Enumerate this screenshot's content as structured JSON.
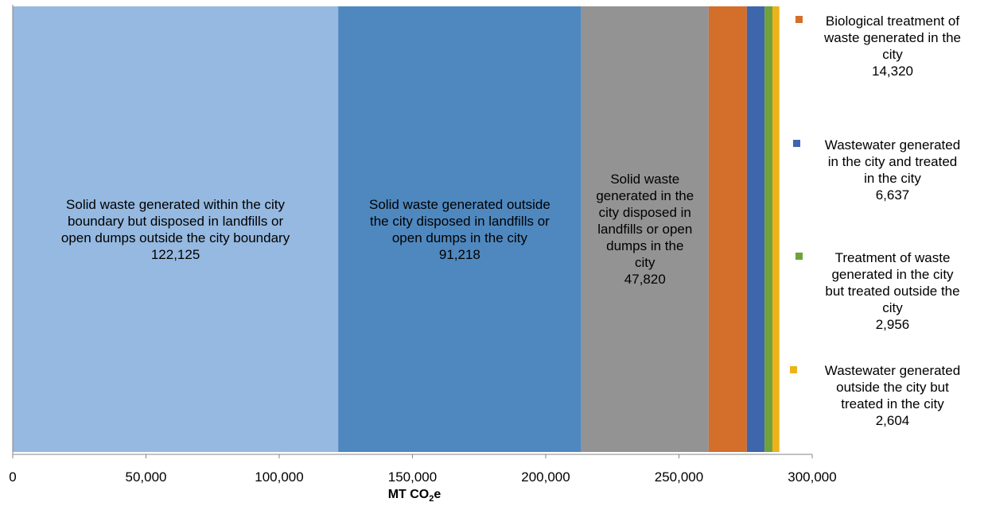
{
  "chart_data": {
    "type": "bar",
    "orientation": "horizontal-stacked",
    "series": [
      {
        "name": "Solid waste generated within the city boundary but disposed in landfills or open dumps outside the city boundary",
        "value": 122125,
        "value_label": "122,125",
        "color": "#95b9e0"
      },
      {
        "name": "Solid waste generated outside the city disposed in landfills or open dumps in the city",
        "value": 91218,
        "value_label": "91,218",
        "color": "#4f88bf"
      },
      {
        "name": "Solid waste generated in the city disposed in landfills or open dumps in the city",
        "value": 47820,
        "value_label": "47,820",
        "color": "#939393"
      },
      {
        "name": "Biological treatment of waste generated in the city",
        "value": 14320,
        "value_label": "14,320",
        "color": "#d36f2b"
      },
      {
        "name": "Wastewater generated in the city and treated in the city",
        "value": 6637,
        "value_label": "6,637",
        "color": "#3e66ad"
      },
      {
        "name": "Treatment of waste generated in the city but treated outside the city",
        "value": 2956,
        "value_label": "2,956",
        "color": "#6fa23d"
      },
      {
        "name": "Wastewater generated outside the city but treated in the city",
        "value": 2604,
        "value_label": "2,604",
        "color": "#ecb31a"
      }
    ],
    "xlabel_main": "MT CO",
    "xlabel_sub": "2",
    "xlabel_suffix": "e",
    "xlim": [
      0,
      300000
    ],
    "xticks": [
      0,
      50000,
      100000,
      150000,
      200000,
      250000,
      300000
    ],
    "xtick_labels": [
      "0",
      "50,000",
      "100,000",
      "150,000",
      "200,000",
      "250,000",
      "300,000"
    ],
    "grid": false,
    "legend": "right"
  },
  "segment_label_lines": [
    [
      "Solid waste generated within the city",
      "boundary but disposed in landfills or",
      "open dumps outside the city boundary",
      "122,125"
    ],
    [
      "Solid waste generated outside",
      "the city disposed in landfills or",
      "open dumps in the city",
      "91,218"
    ],
    [
      "Solid waste",
      "generated in the",
      "city disposed in",
      "landfills or open",
      "dumps in the",
      "city",
      "47,820"
    ]
  ],
  "legend_lines": [
    [
      "Biological treatment of",
      "waste generated in the",
      "city",
      "14,320"
    ],
    [
      "Wastewater generated",
      "in the city and treated",
      "in the city",
      "6,637"
    ],
    [
      "Treatment of waste",
      "generated in the city",
      "but treated outside the",
      "city",
      "2,956"
    ],
    [
      "Wastewater generated",
      "outside the city but",
      "treated in the city",
      "2,604"
    ]
  ]
}
